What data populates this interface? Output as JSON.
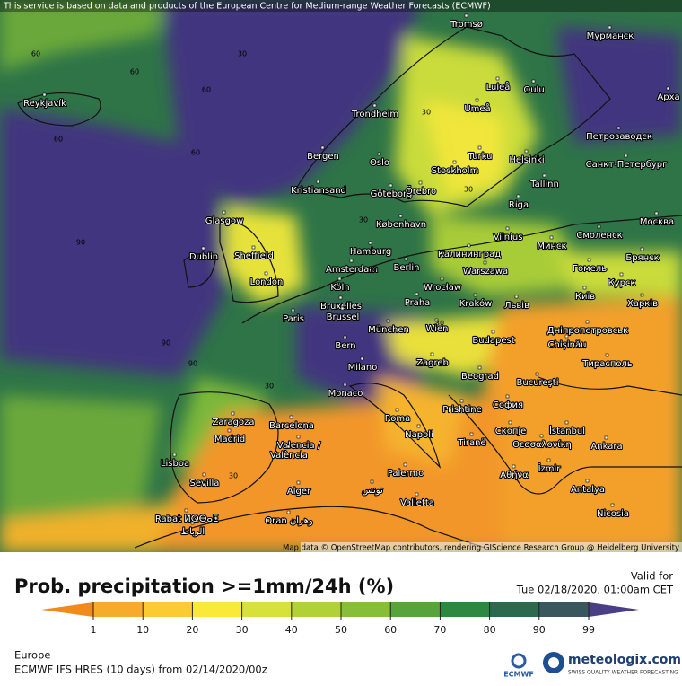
{
  "header": {
    "notice": "This service is based on data and products of the European Centre for Medium-range Weather Forecasts (ECMWF)"
  },
  "map": {
    "cities": [
      "Reykjavík",
      "Tromsø",
      "Мурманск",
      "Luleå",
      "Oulu",
      "Арха",
      "Trondheim",
      "Umeå",
      "Петрозаводск",
      "Bergen",
      "Turku",
      "Helsinki",
      "Санкт-Петербург",
      "Oslo",
      "Stockholm",
      "Tallinn",
      "Kristiansand",
      "Göteborg",
      "Örebro",
      "Glasgow",
      "København",
      "Riga",
      "Москва",
      "Vilnius",
      "Смоленск",
      "Dublin",
      "Sheffield",
      "Hamburg",
      "Калининград",
      "Минск",
      "Брянск",
      "Amsterdam",
      "Berlin",
      "Warszawa",
      "Гомель",
      "London",
      "Köln",
      "Wrocław",
      "Курск",
      "Київ",
      "Bruxelles",
      "Brussel",
      "Praha",
      "Kraków",
      "Львів",
      "Харків",
      "Paris",
      "München",
      "Wien",
      "Дніпропетровськ",
      "Bern",
      "Budapest",
      "Chișinău",
      "Milano",
      "Zagreb",
      "Тирасполь",
      "Beograd",
      "Bucureşti",
      "Monaco",
      "Zaragoza",
      "Barcelona",
      "Roma",
      "Prishtine",
      "София",
      "Madrid",
      "Napoli",
      "Tiranë",
      "Скопје",
      "İstanbul",
      "Valencia /",
      "València",
      "Θεσσαλονίκη",
      "Ankara",
      "Lisboa",
      "Sevilla",
      "Palermo",
      "Αθήνα",
      "İzmir",
      "Antalya",
      "Alger",
      "تونس",
      "Valletta",
      "Rabat ⵍⵕⴱⴰⵟ",
      "الرباط",
      "Oran وهران",
      "Nicosia"
    ],
    "contour_labels": [
      60,
      60,
      60,
      30,
      60,
      30,
      60,
      90,
      30,
      30,
      90,
      30,
      90,
      30,
      30,
      30
    ],
    "attribution": "Map data © OpenStreetMap contributors, rendering GIScience Research Group @ Heidelberg University"
  },
  "legend": {
    "title": "Prob. precipitation >=1mm/24h (%)",
    "ticks": [
      1,
      10,
      20,
      30,
      40,
      50,
      60,
      70,
      80,
      90,
      99
    ],
    "colors": [
      "#f08a1c",
      "#f7ab2a",
      "#fbcb33",
      "#fbe93a",
      "#d6e23a",
      "#b2d136",
      "#86be3a",
      "#58a43c",
      "#2f883f",
      "#2c6a4f",
      "#3a575e",
      "#4a3e86"
    ]
  },
  "valid": {
    "label": "Valid for",
    "time": "Tue 02/18/2020, 01:00am CET"
  },
  "footer": {
    "region": "Europe",
    "model": "ECMWF IFS HRES (10 days) from 02/14/2020/00z",
    "ecmwf_logo": "ECMWF",
    "brand": "meteologix.com",
    "brand_tagline": "SWISS QUALITY WEATHER FORECASTING"
  }
}
